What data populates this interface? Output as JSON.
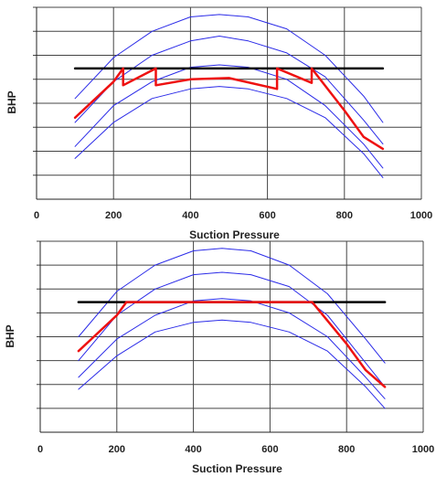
{
  "chart_data": [
    {
      "type": "line",
      "title": "",
      "xlabel": "Suction Pressure",
      "ylabel": "BHP",
      "xlim": [
        0,
        1000
      ],
      "ylim": [
        0,
        8
      ],
      "x_ticks": [
        "0",
        "200",
        "400",
        "600",
        "800",
        "1000"
      ],
      "grid": true,
      "colors": {
        "curves": "#2b2be8",
        "operating": "#ee1111",
        "limit": "#000000"
      },
      "series": [
        {
          "role": "curve",
          "x": [
            100,
            200,
            300,
            400,
            475,
            550,
            650,
            750,
            850,
            900
          ],
          "y": [
            4.2,
            5.9,
            7.0,
            7.6,
            7.7,
            7.6,
            7.1,
            6.0,
            4.3,
            3.2
          ]
        },
        {
          "role": "curve",
          "x": [
            100,
            200,
            300,
            400,
            475,
            550,
            650,
            750,
            850,
            900
          ],
          "y": [
            3.2,
            4.9,
            6.0,
            6.6,
            6.8,
            6.6,
            6.1,
            5.1,
            3.3,
            2.3
          ]
        },
        {
          "role": "curve",
          "x": [
            100,
            200,
            300,
            400,
            475,
            550,
            650,
            750,
            850,
            900
          ],
          "y": [
            2.2,
            3.9,
            4.9,
            5.5,
            5.6,
            5.5,
            5.0,
            3.9,
            2.3,
            1.3
          ]
        },
        {
          "role": "curve",
          "x": [
            100,
            200,
            300,
            400,
            475,
            550,
            650,
            750,
            850,
            900
          ],
          "y": [
            1.7,
            3.2,
            4.2,
            4.6,
            4.7,
            4.6,
            4.2,
            3.4,
            1.9,
            0.9
          ]
        },
        {
          "role": "limit",
          "x": [
            100,
            900
          ],
          "y": [
            5.45,
            5.45
          ]
        },
        {
          "role": "operating",
          "x": [
            100,
            200,
            225,
            225,
            310,
            310,
            400,
            500,
            625,
            625,
            715,
            715,
            800,
            850,
            900
          ],
          "y": [
            3.4,
            4.9,
            5.45,
            4.75,
            5.45,
            4.75,
            5.0,
            5.05,
            4.6,
            5.45,
            4.85,
            5.45,
            3.7,
            2.6,
            2.1
          ]
        }
      ]
    },
    {
      "type": "line",
      "title": "",
      "xlabel": "Suction Pressure",
      "ylabel": "BHP",
      "xlim": [
        0,
        1000
      ],
      "ylim": [
        0,
        8
      ],
      "x_ticks": [
        "0",
        "200",
        "400",
        "600",
        "800",
        "1000"
      ],
      "grid": true,
      "colors": {
        "curves": "#2b2be8",
        "operating": "#ee1111",
        "limit": "#000000"
      },
      "series": [
        {
          "role": "curve",
          "x": [
            100,
            200,
            300,
            400,
            475,
            550,
            650,
            750,
            850,
            900
          ],
          "y": [
            4.0,
            5.9,
            7.0,
            7.6,
            7.7,
            7.6,
            7.0,
            5.8,
            3.9,
            2.9
          ]
        },
        {
          "role": "curve",
          "x": [
            100,
            200,
            300,
            400,
            475,
            550,
            650,
            750,
            850,
            900
          ],
          "y": [
            3.0,
            4.9,
            6.0,
            6.6,
            6.7,
            6.6,
            6.1,
            4.9,
            2.9,
            1.9
          ]
        },
        {
          "role": "curve",
          "x": [
            100,
            200,
            300,
            400,
            475,
            550,
            650,
            750,
            850,
            900
          ],
          "y": [
            2.3,
            3.9,
            4.9,
            5.5,
            5.6,
            5.5,
            5.0,
            4.0,
            2.3,
            1.4
          ]
        },
        {
          "role": "curve",
          "x": [
            100,
            200,
            300,
            400,
            475,
            550,
            650,
            750,
            850,
            900
          ],
          "y": [
            1.8,
            3.2,
            4.2,
            4.6,
            4.7,
            4.6,
            4.2,
            3.4,
            1.9,
            1.0
          ]
        },
        {
          "role": "limit",
          "x": [
            100,
            900
          ],
          "y": [
            5.45,
            5.45
          ]
        },
        {
          "role": "operating",
          "x": [
            100,
            200,
            225,
            710,
            800,
            850,
            900
          ],
          "y": [
            3.4,
            4.9,
            5.45,
            5.45,
            3.7,
            2.6,
            1.9
          ]
        }
      ]
    }
  ]
}
